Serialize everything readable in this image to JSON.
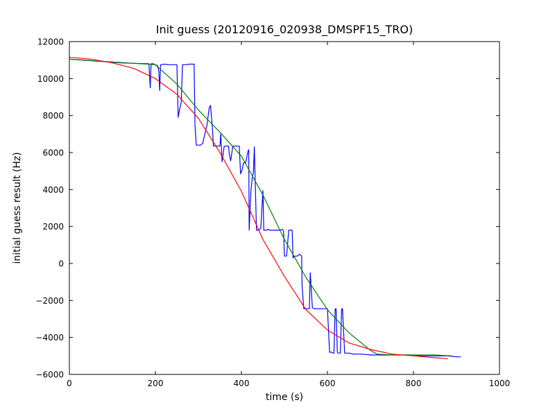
{
  "chart_data": {
    "type": "line",
    "title": "Init guess (20120916_020938_DMSPF15_TRO)",
    "xlabel": "time (s)",
    "ylabel": "initial guess result (Hz)",
    "xlim": [
      0,
      1000
    ],
    "ylim": [
      -6000,
      12000
    ],
    "xticks": [
      0,
      200,
      400,
      600,
      800,
      1000
    ],
    "yticks": [
      -6000,
      -4000,
      -2000,
      0,
      2000,
      4000,
      6000,
      8000,
      10000,
      12000
    ],
    "grid": false,
    "legend": "none",
    "series": [
      {
        "color": "#0000ff",
        "x": [
          0,
          60,
          120,
          185,
          188,
          190,
          195,
          200,
          205,
          208,
          210,
          212,
          215,
          220,
          230,
          240,
          250,
          253,
          255,
          260,
          263,
          265,
          270,
          280,
          290,
          292,
          295,
          305,
          310,
          320,
          325,
          328,
          332,
          335,
          340,
          345,
          350,
          352,
          355,
          360,
          370,
          372,
          375,
          380,
          390,
          395,
          398,
          402,
          405,
          410,
          415,
          417,
          418,
          422,
          425,
          428,
          430,
          435,
          437,
          440,
          445,
          450,
          452,
          455,
          458,
          462,
          465,
          470,
          480,
          490,
          495,
          498,
          500,
          505,
          510,
          515,
          518,
          520,
          522,
          525,
          530,
          535,
          540,
          541,
          545,
          548,
          550,
          555,
          558,
          560,
          565,
          570,
          580,
          590,
          600,
          605,
          610,
          613,
          615,
          618,
          620,
          623,
          625,
          630,
          633,
          635,
          640,
          650,
          660,
          670,
          680,
          700,
          720,
          750,
          780,
          800,
          820,
          850,
          880,
          900,
          910
        ],
        "y": [
          11050,
          10950,
          10850,
          10800,
          9500,
          10800,
          10800,
          10750,
          10700,
          10400,
          9350,
          10750,
          10750,
          10780,
          10750,
          10750,
          10750,
          7900,
          8200,
          8700,
          10750,
          10750,
          10750,
          10780,
          10780,
          7500,
          6400,
          6400,
          6500,
          7500,
          8400,
          8550,
          7500,
          6350,
          6350,
          6350,
          6350,
          7000,
          5500,
          6350,
          6350,
          5900,
          5550,
          6350,
          6350,
          6350,
          4850,
          5100,
          5450,
          5450,
          6050,
          6150,
          1800,
          3900,
          4600,
          4950,
          6300,
          1800,
          1800,
          1800,
          1900,
          3950,
          1800,
          1800,
          1800,
          1850,
          1800,
          1800,
          1800,
          1800,
          1850,
          1750,
          400,
          400,
          1800,
          1800,
          1800,
          300,
          350,
          400,
          400,
          500,
          400,
          -1200,
          -2450,
          -2450,
          -2450,
          -2450,
          -2450,
          -500,
          -2400,
          -2450,
          -2450,
          -2450,
          -2450,
          -4800,
          -4800,
          -4850,
          -4850,
          -2450,
          -2450,
          -4800,
          -4850,
          -4850,
          -2450,
          -2450,
          -4850,
          -4850,
          -4900,
          -4900,
          -4900,
          -4950,
          -4950,
          -4950,
          -4950,
          -4950,
          -5000,
          -5000,
          -5000,
          -5050,
          -5050
        ]
      },
      {
        "color": "#008000",
        "x": [
          0,
          100,
          200,
          250,
          300,
          350,
          400,
          450,
          500,
          550,
          600,
          650,
          700,
          715,
          750,
          800,
          850,
          890
        ],
        "y": [
          11050,
          10900,
          10750,
          9700,
          8300,
          7100,
          5800,
          3700,
          1300,
          -750,
          -2500,
          -3750,
          -4700,
          -4900,
          -4950,
          -4950,
          -4950,
          -5000
        ]
      },
      {
        "color": "#ff0000",
        "x": [
          0,
          50,
          100,
          150,
          200,
          250,
          300,
          350,
          400,
          450,
          500,
          550,
          600,
          650,
          700,
          750,
          800,
          850,
          880
        ],
        "y": [
          11150,
          11050,
          10850,
          10550,
          10000,
          9150,
          7850,
          6000,
          3900,
          1300,
          -700,
          -2500,
          -3600,
          -4300,
          -4650,
          -4900,
          -5000,
          -5100,
          -5150
        ]
      }
    ]
  }
}
